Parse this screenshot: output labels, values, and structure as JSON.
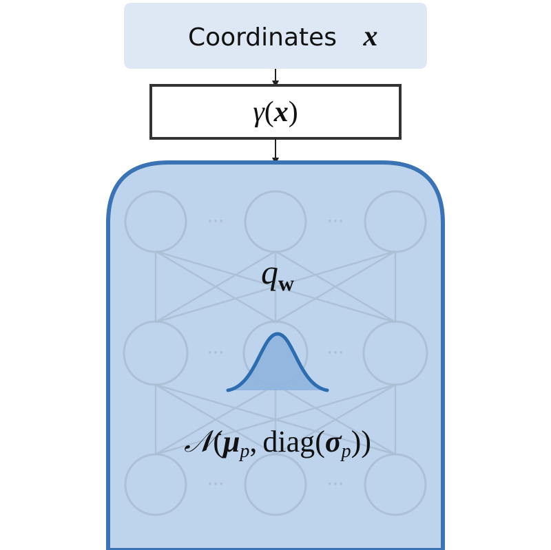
{
  "input_box": {
    "label": "Coordinates",
    "symbol": "x"
  },
  "encoding_box": {
    "func": "γ",
    "open": "(",
    "symbol": "x",
    "close": ")"
  },
  "network": {
    "symbol": "q",
    "subscript": "w",
    "ellipsis": "···"
  },
  "prior": {
    "script_n": "𝒩",
    "open": "(",
    "mu": "μ",
    "mu_sub": "p",
    "comma": ",",
    "diag": "diag",
    "inner_open": "(",
    "sigma": "σ",
    "sigma_sub": "p",
    "close": "))"
  },
  "colors": {
    "input_fill": "#dde8f4",
    "network_fill": "#bdd4ec",
    "network_stroke": "#3a74b6",
    "curve_fill": "#8fb4df",
    "curve_stroke": "#2e6cb0",
    "node_stroke": "#a9bdd1"
  }
}
